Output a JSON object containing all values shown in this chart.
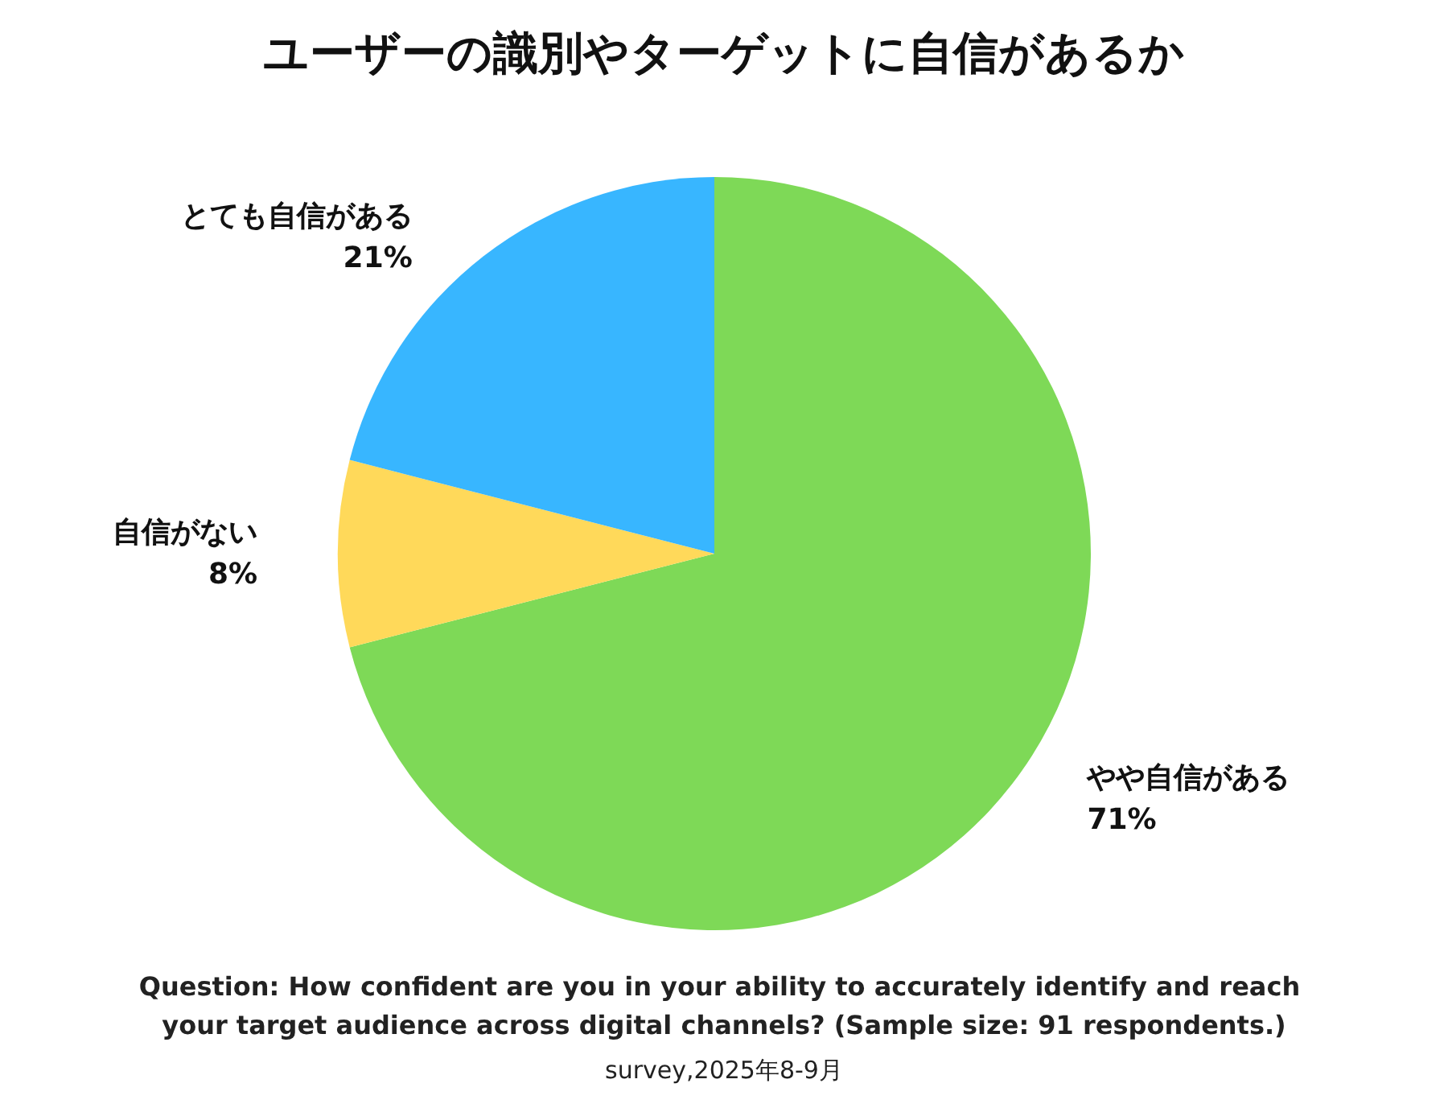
{
  "chart_data": {
    "type": "pie",
    "title": "ユーザーの識別やターゲットに自信があるか",
    "categories": [
      "やや自信がある",
      "自信がない",
      "とても自信がある"
    ],
    "values": [
      71,
      8,
      21
    ],
    "value_labels": [
      "71%",
      "8%",
      "21%"
    ],
    "colors": [
      "#7ed957",
      "#ffd95a",
      "#38b6ff"
    ],
    "annotations": [
      "Question: How confident are you in your ability to accurately identify and reach your target audience across digital channels? (Sample size: 91 respondents.)",
      "survey,2025年8-9月"
    ]
  }
}
